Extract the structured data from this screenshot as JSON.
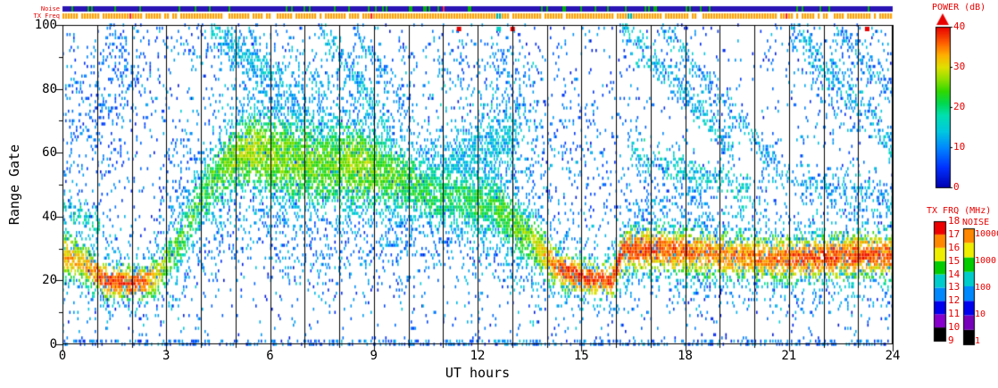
{
  "colors": {
    "background": "#ffffff",
    "axis_text": "#000000",
    "panel_text": "#e80000",
    "gridline": "#000000"
  },
  "chart_data": {
    "type": "heatmap",
    "description": "Radar range-time-intensity plot: backscatter POWER (dB) versus Range Gate (0-100) and UT time (0-24 h). Vertical black gridlines every hour. Noise and TX Freq status strips along the top edge. POWER, TX FRQ and NOISE colorbars on the right panel.",
    "xlabel": "UT hours",
    "ylabel": "Range Gate",
    "xlim": [
      0,
      24
    ],
    "ylim": [
      0,
      100
    ],
    "xticks": [
      0,
      3,
      6,
      9,
      12,
      15,
      18,
      21,
      24
    ],
    "x_minor_tick_every_hours": 1,
    "yticks": [
      0,
      20,
      40,
      60,
      80,
      100
    ],
    "vertical_gridlines_every_hours": 1,
    "colormap_stops": [
      [
        0,
        "#0000b0"
      ],
      [
        5,
        "#0030ff"
      ],
      [
        10,
        "#0088ff"
      ],
      [
        14,
        "#00c8e0"
      ],
      [
        18,
        "#00e0b0"
      ],
      [
        21,
        "#00d850"
      ],
      [
        24,
        "#30d800"
      ],
      [
        27,
        "#90e000"
      ],
      [
        30,
        "#e0e000"
      ],
      [
        33,
        "#ffb000"
      ],
      [
        36,
        "#ff6000"
      ],
      [
        40,
        "#e80000"
      ]
    ],
    "colorbars": [
      {
        "title": "POWER (dB)",
        "ticks": [
          0,
          10,
          20,
          30,
          40
        ],
        "range": [
          0,
          40
        ],
        "overflow_arrow_color": "#e80000"
      },
      {
        "title": "TX FRQ (MHz)",
        "ticks": [
          9,
          10,
          11,
          12,
          13,
          14,
          15,
          16,
          17,
          18
        ],
        "block_colors_bottom_to_top": [
          "#000000",
          "#8800cc",
          "#0000ee",
          "#0088ff",
          "#00cccc",
          "#00cc00",
          "#eeee00",
          "#ff8800",
          "#ee0000"
        ]
      },
      {
        "title": "NOISE",
        "scale": "log",
        "ticks_top_to_bottom": [
          "10000",
          "1000",
          "100",
          "10",
          "1"
        ],
        "block_colors_bottom_to_top": [
          "#000000",
          "#7700bb",
          "#0000ee",
          "#0088ff",
          "#00cccc",
          "#00cc00",
          "#eeee00",
          "#ff8800"
        ]
      }
    ],
    "strips": {
      "noise": {
        "label": "Noise",
        "base_color": "#2a14b4",
        "speck_color": "#00b400"
      },
      "tx_freq": {
        "label": "TX Freq",
        "base_color": "#ffa000",
        "alt_mark_color": "#00b0a0",
        "alt_mark_times": [
          12.6,
          16.35
        ]
      }
    },
    "main_echo_band_keypoints": [
      [
        0.0,
        28,
        33,
        4,
        0.85
      ],
      [
        0.7,
        25,
        32,
        3.5,
        0.85
      ],
      [
        1.2,
        20,
        38,
        3,
        0.9
      ],
      [
        2.2,
        19,
        38,
        3,
        0.9
      ],
      [
        2.7,
        21,
        31,
        3.5,
        0.75
      ],
      [
        3.3,
        30,
        24,
        5,
        0.6
      ],
      [
        4.0,
        46,
        22,
        6,
        0.65
      ],
      [
        4.8,
        57,
        26,
        6,
        0.8
      ],
      [
        5.4,
        61,
        28,
        7,
        0.85
      ],
      [
        6.4,
        58,
        26,
        8,
        0.85
      ],
      [
        7.5,
        56,
        25,
        8,
        0.85
      ],
      [
        8.6,
        56,
        27,
        8,
        0.85
      ],
      [
        9.5,
        53,
        24,
        7,
        0.8
      ],
      [
        10.5,
        48,
        22,
        6,
        0.7
      ],
      [
        11.5,
        46,
        21,
        6,
        0.7
      ],
      [
        12.5,
        43,
        23,
        6,
        0.75
      ],
      [
        13.5,
        33,
        26,
        5,
        0.8
      ],
      [
        14.3,
        24,
        36,
        3.5,
        0.9
      ],
      [
        15.0,
        21,
        38,
        3,
        0.9
      ],
      [
        15.9,
        20,
        38,
        3,
        0.9
      ],
      [
        16.2,
        29,
        37,
        4,
        0.9
      ],
      [
        17.0,
        30,
        37,
        4,
        0.9
      ],
      [
        18.0,
        29,
        36,
        4,
        0.9
      ],
      [
        19.0,
        28,
        35,
        4,
        0.85
      ],
      [
        20.0,
        27,
        35,
        4,
        0.85
      ],
      [
        21.0,
        27,
        36,
        4,
        0.85
      ],
      [
        22.0,
        27,
        37,
        4,
        0.9
      ],
      [
        23.0,
        28,
        37,
        4,
        0.9
      ],
      [
        24.0,
        28,
        36,
        4,
        0.9
      ]
    ],
    "streaks": [
      [
        4.25,
        100,
        6.4,
        80,
        3.0,
        0.45,
        13
      ],
      [
        7.4,
        100,
        9.5,
        67,
        2.6,
        0.4,
        13
      ],
      [
        8.4,
        98,
        10.2,
        70,
        2.2,
        0.3,
        11
      ],
      [
        10.5,
        54,
        13.2,
        66,
        4.0,
        0.4,
        14
      ],
      [
        16.15,
        100,
        19.4,
        61,
        2.8,
        0.45,
        13
      ],
      [
        17.3,
        100,
        20.6,
        57,
        2.4,
        0.35,
        12
      ],
      [
        16.4,
        60,
        19.9,
        48,
        2.6,
        0.4,
        15
      ],
      [
        21.0,
        100,
        24.0,
        62,
        2.8,
        0.4,
        13
      ],
      [
        22.3,
        100,
        24.0,
        78,
        2.2,
        0.3,
        11
      ],
      [
        2.8,
        100,
        4.1,
        87,
        2.2,
        0.25,
        10
      ],
      [
        20.2,
        55,
        24.0,
        45,
        3.0,
        0.3,
        12
      ],
      [
        0.0,
        42,
        1.1,
        38,
        2.5,
        0.45,
        16
      ]
    ],
    "clouds": [
      [
        0.8,
        0.9,
        72,
        16,
        0.16,
        9
      ],
      [
        1.9,
        0.45,
        88,
        10,
        0.18,
        9
      ],
      [
        5.1,
        0.6,
        91,
        7,
        0.18,
        11
      ],
      [
        6.9,
        0.5,
        76,
        7,
        0.22,
        12
      ],
      [
        12.4,
        0.8,
        63,
        10,
        0.26,
        13
      ],
      [
        12.9,
        0.5,
        82,
        10,
        0.14,
        10
      ],
      [
        11.4,
        0.5,
        92,
        7,
        0.12,
        10
      ],
      [
        17.5,
        0.8,
        45,
        8,
        0.15,
        10
      ],
      [
        22.6,
        1.2,
        82,
        12,
        0.12,
        10
      ],
      [
        9.8,
        0.5,
        33,
        8,
        0.12,
        9
      ],
      [
        14.8,
        1.0,
        60,
        14,
        0.1,
        9
      ],
      [
        3.4,
        0.4,
        55,
        12,
        0.1,
        9
      ],
      [
        6.5,
        2.0,
        32,
        8,
        0.05,
        8
      ]
    ],
    "background_scatter": {
      "density": 0.028,
      "power_range": [
        2,
        12
      ]
    },
    "bottom_row_scatter": {
      "gate_max": 1.5,
      "density": 0.3,
      "power_range": [
        4,
        14
      ]
    },
    "top_edge_marks": [
      {
        "t": 11.45,
        "power": 40
      },
      {
        "t": 13.0,
        "power": 40
      },
      {
        "t": 12.6,
        "power": 16
      },
      {
        "t": 23.25,
        "power": 40
      }
    ]
  }
}
